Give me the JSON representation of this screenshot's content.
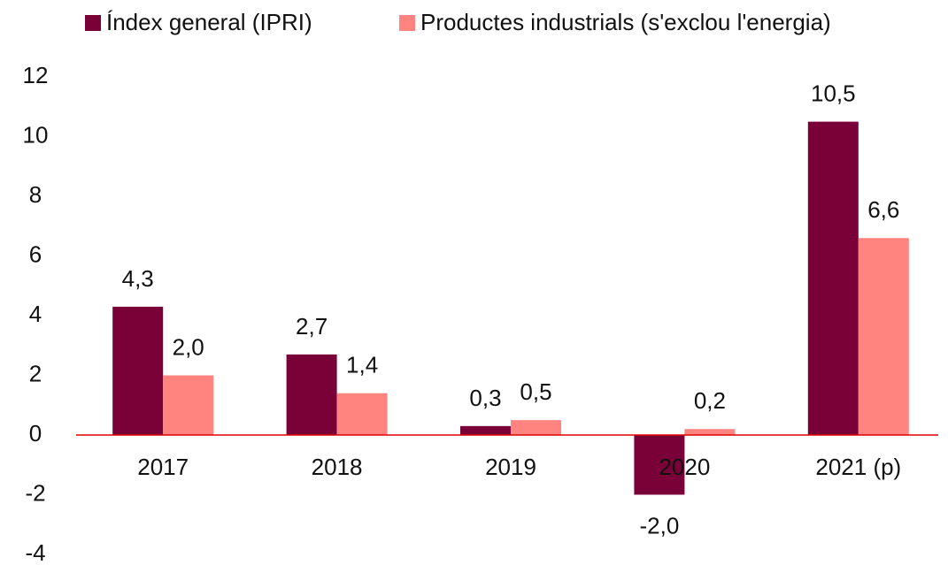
{
  "chart_data": {
    "type": "bar",
    "categories": [
      "2017",
      "2018",
      "2019",
      "2020",
      "2021 (p)"
    ],
    "series": [
      {
        "name": "Índex general (IPRI)",
        "color": "#7a0038",
        "values": [
          4.3,
          2.7,
          0.3,
          -2.0,
          10.5
        ],
        "value_labels": [
          "4,3",
          "2,7",
          "0,3",
          "-2,0",
          "10,5"
        ]
      },
      {
        "name": "Productes industrials (s'exclou l'energia)",
        "color": "#ff837e",
        "values": [
          2.0,
          1.4,
          0.5,
          0.2,
          6.6
        ],
        "value_labels": [
          "2,0",
          "1,4",
          "0,5",
          "0,2",
          "6,6"
        ]
      }
    ],
    "ylim": [
      -4,
      12
    ],
    "yticks": [
      -4,
      -2,
      0,
      2,
      4,
      6,
      8,
      10,
      12
    ],
    "grid": false,
    "legend": "top"
  }
}
